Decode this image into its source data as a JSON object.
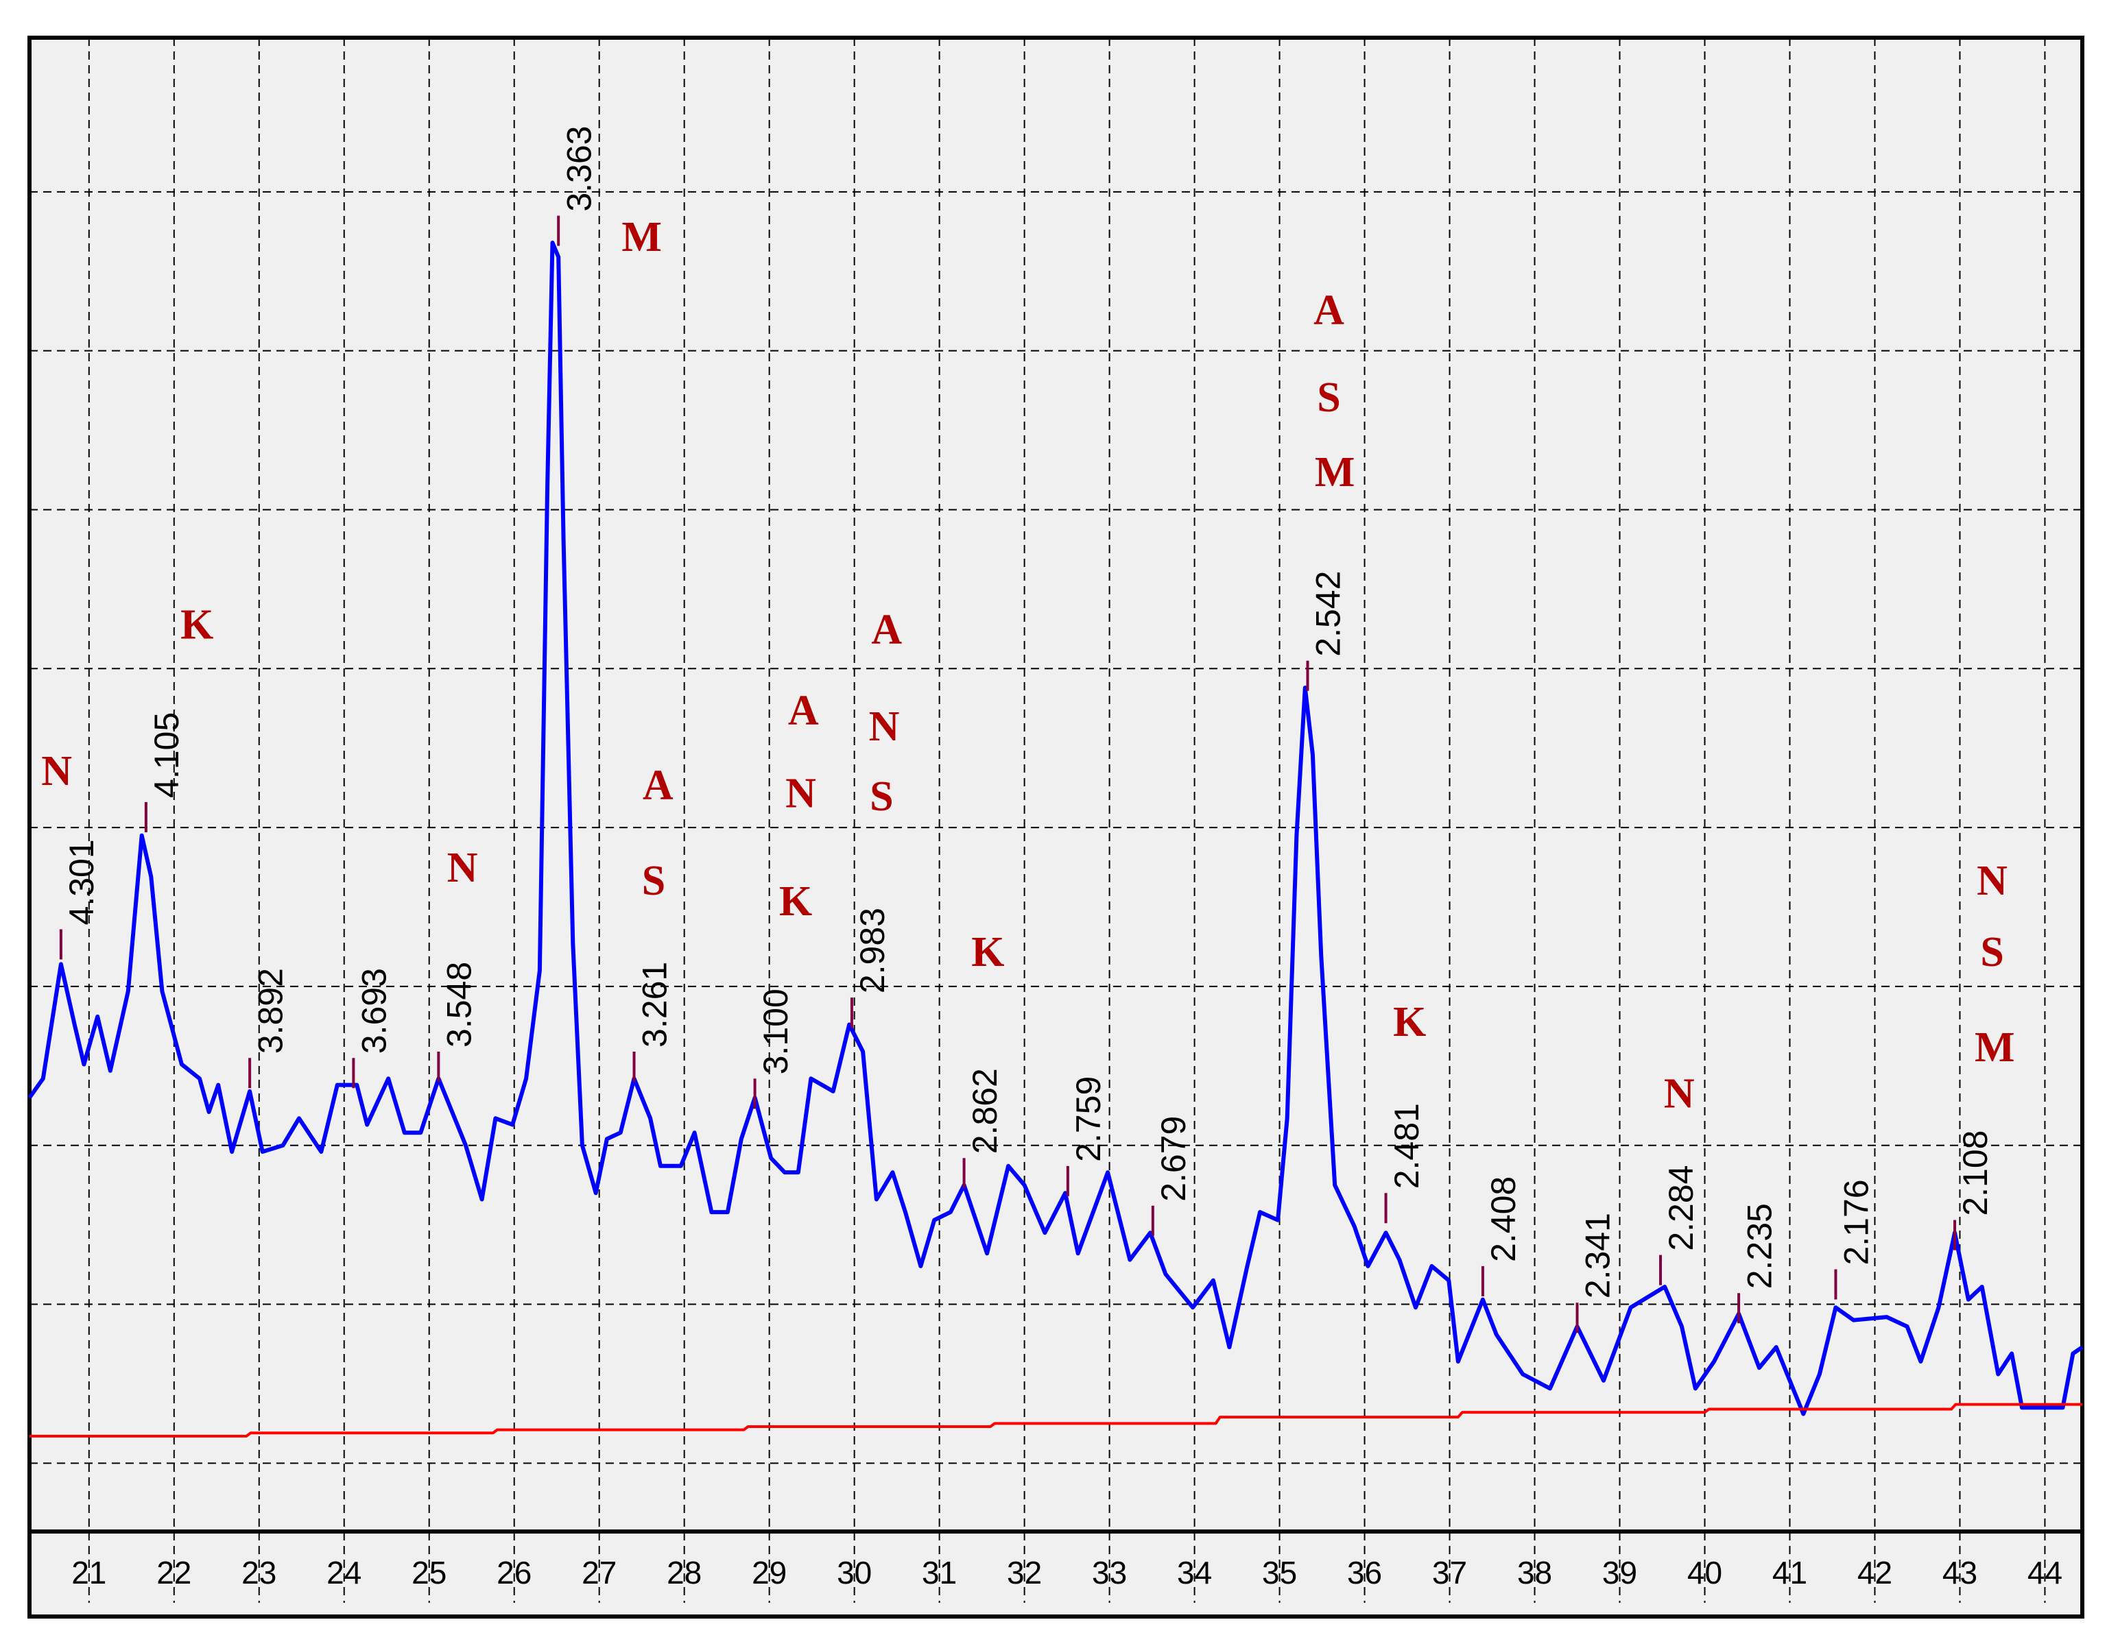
{
  "chart_data": {
    "type": "line",
    "xlim": [
      20.3,
      44.44
    ],
    "xticks": [
      21,
      22,
      23,
      24,
      25,
      26,
      27,
      28,
      29,
      30,
      31,
      32,
      33,
      34,
      35,
      36,
      37,
      38,
      39,
      40,
      41,
      42,
      43,
      44
    ],
    "ylim": [
      0.57,
      9.97
    ],
    "yticks": [
      1,
      2,
      3,
      4,
      5,
      6,
      7,
      8,
      9
    ],
    "grid": true,
    "series": [
      {
        "color": "#0000ff",
        "x": [
          20.3,
          20.46,
          20.67,
          20.83,
          20.94,
          21.1,
          21.25,
          21.46,
          21.62,
          21.73,
          21.86,
          22.09,
          22.3,
          22.41,
          22.52,
          22.68,
          22.89,
          23.04,
          23.28,
          23.47,
          23.73,
          23.92,
          24.15,
          24.27,
          24.52,
          24.71,
          24.9,
          25.11,
          25.43,
          25.62,
          25.78,
          25.98,
          26.14,
          26.3,
          26.39,
          26.45,
          26.52,
          26.58,
          26.69,
          26.8,
          26.96,
          27.09,
          27.25,
          27.41,
          27.6,
          27.72,
          27.96,
          28.12,
          28.32,
          28.51,
          28.67,
          28.83,
          29.02,
          29.18,
          29.34,
          29.49,
          29.75,
          29.94,
          30.1,
          30.26,
          30.45,
          30.6,
          30.78,
          30.94,
          31.13,
          31.29,
          31.56,
          31.81,
          32.0,
          32.24,
          32.48,
          32.63,
          32.98,
          33.24,
          33.48,
          33.66,
          33.98,
          34.22,
          34.41,
          34.62,
          34.77,
          34.98,
          35.09,
          35.2,
          35.3,
          35.39,
          35.49,
          35.65,
          35.88,
          36.04,
          36.25,
          36.41,
          36.6,
          36.79,
          36.99,
          37.1,
          37.39,
          37.55,
          37.86,
          38.18,
          38.5,
          38.81,
          39.13,
          39.53,
          39.73,
          39.89,
          40.11,
          40.4,
          40.64,
          40.84,
          41.16,
          41.35,
          41.54,
          41.75,
          42.14,
          42.38,
          42.54,
          42.75,
          42.94,
          43.1,
          43.26,
          43.45,
          43.61,
          43.73,
          44.21,
          44.33,
          44.44
        ],
        "values": [
          3.3,
          3.42,
          4.14,
          3.76,
          3.51,
          3.81,
          3.47,
          3.97,
          4.95,
          4.69,
          3.97,
          3.51,
          3.42,
          3.21,
          3.38,
          2.96,
          3.34,
          2.96,
          3.0,
          3.17,
          2.96,
          3.38,
          3.38,
          3.13,
          3.42,
          3.08,
          3.08,
          3.42,
          3.0,
          2.66,
          3.17,
          3.13,
          3.42,
          4.1,
          7.15,
          8.68,
          8.59,
          6.81,
          4.27,
          3.0,
          2.7,
          3.04,
          3.08,
          3.42,
          3.17,
          2.87,
          2.87,
          3.08,
          2.58,
          2.58,
          3.04,
          3.3,
          2.92,
          2.83,
          2.83,
          3.42,
          3.34,
          3.76,
          3.59,
          2.66,
          2.83,
          2.58,
          2.24,
          2.53,
          2.58,
          2.75,
          2.32,
          2.87,
          2.75,
          2.45,
          2.7,
          2.32,
          2.83,
          2.28,
          2.45,
          2.19,
          1.98,
          2.15,
          1.73,
          2.24,
          2.58,
          2.53,
          3.17,
          4.95,
          5.88,
          5.46,
          4.19,
          2.75,
          2.49,
          2.24,
          2.45,
          2.28,
          1.98,
          2.24,
          2.15,
          1.64,
          2.03,
          1.81,
          1.56,
          1.47,
          1.86,
          1.52,
          1.98,
          2.11,
          1.86,
          1.47,
          1.64,
          1.94,
          1.6,
          1.73,
          1.31,
          1.56,
          1.98,
          1.9,
          1.92,
          1.86,
          1.64,
          1.98,
          2.45,
          2.03,
          2.11,
          1.56,
          1.69,
          1.35,
          1.35,
          1.69,
          1.73
        ]
      },
      {
        "color": "#ff0000",
        "x": [
          20.3,
          22.85,
          22.9,
          25.75,
          25.8,
          28.7,
          28.75,
          31.6,
          31.65,
          34.25,
          34.3,
          37.1,
          37.15,
          40.0,
          40.05,
          42.9,
          42.95,
          44.44
        ],
        "values": [
          1.17,
          1.17,
          1.19,
          1.19,
          1.21,
          1.21,
          1.23,
          1.23,
          1.25,
          1.25,
          1.29,
          1.29,
          1.32,
          1.32,
          1.34,
          1.34,
          1.37,
          1.37
        ]
      }
    ],
    "peak_color": "#800040",
    "peaks": [
      {
        "label": "4.301",
        "x": 20.67,
        "y": 4.36
      },
      {
        "label": "4.105",
        "x": 21.67,
        "y": 5.16
      },
      {
        "label": "3.892",
        "x": 22.89,
        "y": 3.55
      },
      {
        "label": "3.693",
        "x": 24.11,
        "y": 3.55
      },
      {
        "label": "3.548",
        "x": 25.11,
        "y": 3.59
      },
      {
        "label": "3.363",
        "x": 26.52,
        "y": 8.85
      },
      {
        "label": "3.261",
        "x": 27.41,
        "y": 3.59
      },
      {
        "label": "3.100",
        "x": 28.83,
        "y": 3.42
      },
      {
        "label": "2.983",
        "x": 29.97,
        "y": 3.93
      },
      {
        "label": "2.862",
        "x": 31.29,
        "y": 2.92
      },
      {
        "label": "2.759",
        "x": 32.51,
        "y": 2.87
      },
      {
        "label": "2.679",
        "x": 33.51,
        "y": 2.62
      },
      {
        "label": "2.542",
        "x": 35.33,
        "y": 6.05
      },
      {
        "label": "2.481",
        "x": 36.25,
        "y": 2.7
      },
      {
        "label": "2.408",
        "x": 37.39,
        "y": 2.24
      },
      {
        "label": "2.341",
        "x": 38.5,
        "y": 2.01
      },
      {
        "label": "2.284",
        "x": 39.48,
        "y": 2.31
      },
      {
        "label": "2.235",
        "x": 40.4,
        "y": 2.07
      },
      {
        "label": "2.176",
        "x": 41.54,
        "y": 2.22
      },
      {
        "label": "2.108",
        "x": 42.94,
        "y": 2.53
      }
    ],
    "annotations": [
      {
        "text": "N",
        "x": 20.62,
        "y": 5.33
      },
      {
        "text": "K",
        "x": 22.27,
        "y": 6.25
      },
      {
        "text": "N",
        "x": 25.39,
        "y": 4.72
      },
      {
        "text": "M",
        "x": 27.5,
        "y": 8.69
      },
      {
        "text": "A",
        "x": 27.69,
        "y": 5.24
      },
      {
        "text": "S",
        "x": 27.64,
        "y": 4.64
      },
      {
        "text": "A",
        "x": 29.4,
        "y": 5.71
      },
      {
        "text": "N",
        "x": 29.37,
        "y": 5.19
      },
      {
        "text": "K",
        "x": 29.31,
        "y": 4.51
      },
      {
        "text": "A",
        "x": 30.38,
        "y": 6.22
      },
      {
        "text": "N",
        "x": 30.35,
        "y": 5.61
      },
      {
        "text": "S",
        "x": 30.32,
        "y": 5.17
      },
      {
        "text": "K",
        "x": 31.57,
        "y": 4.19
      },
      {
        "text": "A",
        "x": 35.58,
        "y": 8.23
      },
      {
        "text": "S",
        "x": 35.58,
        "y": 7.68
      },
      {
        "text": "M",
        "x": 35.65,
        "y": 7.21
      },
      {
        "text": "K",
        "x": 36.53,
        "y": 3.75
      },
      {
        "text": "N",
        "x": 39.7,
        "y": 3.3
      },
      {
        "text": "N",
        "x": 43.38,
        "y": 4.64
      },
      {
        "text": "S",
        "x": 43.38,
        "y": 4.19
      },
      {
        "text": "M",
        "x": 43.41,
        "y": 3.59
      }
    ]
  }
}
